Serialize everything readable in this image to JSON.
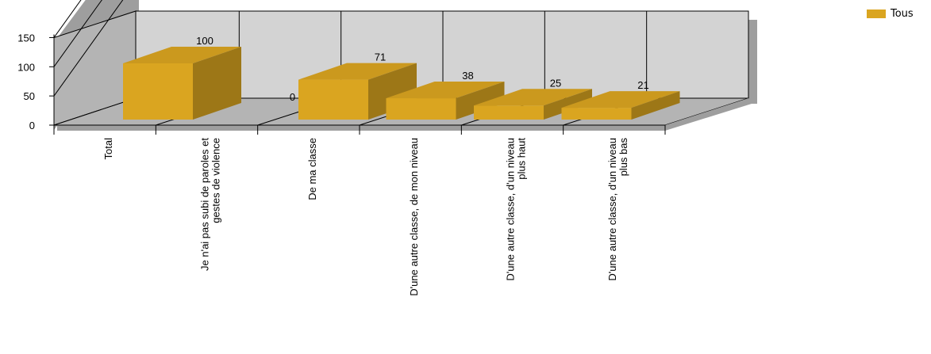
{
  "chart_data": {
    "type": "bar",
    "title": "",
    "xlabel": "",
    "ylabel": "",
    "ylim": [
      0,
      150
    ],
    "yticks": [
      0,
      50,
      100,
      150
    ],
    "grid": true,
    "three_d": true,
    "legend_position": "top-right",
    "categories": [
      [
        "Total"
      ],
      [
        "Je n'ai pas subi de paroles et",
        "gestes de violence"
      ],
      [
        "De ma classe"
      ],
      [
        "D'une autre classe, de mon niveau"
      ],
      [
        "D'une autre classe, d'un niveau",
        "plus haut"
      ],
      [
        "D'une autre classe, d'un niveau",
        "plus bas"
      ]
    ],
    "series": [
      {
        "name": "Tous",
        "values": [
          100,
          0,
          71,
          38,
          25,
          21
        ],
        "color": "#DAA520"
      }
    ],
    "value_labels": [
      "100",
      "0",
      "71",
      "38",
      "25",
      "21"
    ]
  },
  "legend": {
    "label": "Tous"
  }
}
